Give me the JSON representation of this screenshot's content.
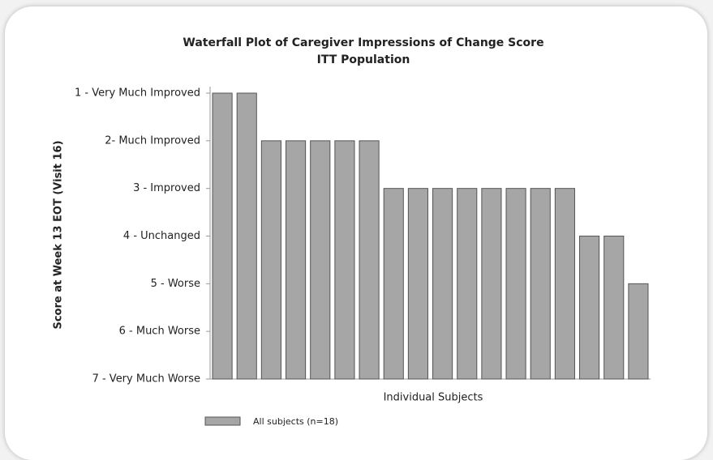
{
  "chart_data": {
    "type": "bar",
    "title": "Waterfall Plot of Caregiver Impressions of Change Score",
    "subtitle": "ITT Population",
    "y_label": "Score at Week 13 EOT (Visit 16)",
    "x_label": "Individual Subjects",
    "categories": [
      null,
      null,
      null,
      null,
      null,
      null,
      null,
      null,
      null,
      null,
      null,
      null,
      null,
      null,
      null,
      null,
      null,
      null
    ],
    "series": [
      {
        "name": "All subjects (n=18)",
        "color": "#a6a6a6",
        "values": [
          1,
          1,
          2,
          2,
          2,
          2,
          2,
          3,
          3,
          3,
          3,
          3,
          3,
          3,
          3,
          4,
          4,
          5
        ]
      }
    ],
    "ylim": [
      7,
      1
    ],
    "yticks": [
      {
        "value": 1,
        "label": "1 - Very Much Improved"
      },
      {
        "value": 2,
        "label": "2- Much Improved"
      },
      {
        "value": 3,
        "label": "3 - Improved"
      },
      {
        "value": 4,
        "label": "4 - Unchanged"
      },
      {
        "value": 5,
        "label": "5 - Worse"
      },
      {
        "value": 6,
        "label": "6 - Much Worse"
      },
      {
        "value": 7,
        "label": "7 - Very Much Worse"
      }
    ],
    "grid": false,
    "legend": "bottom"
  }
}
